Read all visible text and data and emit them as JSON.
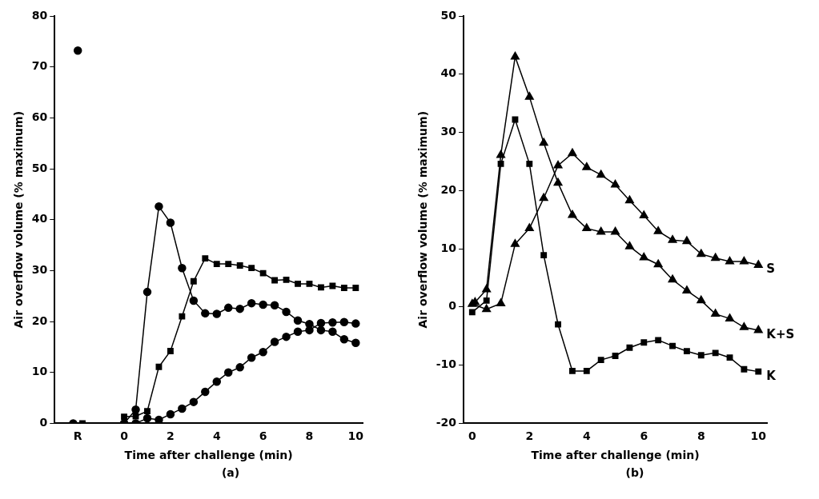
{
  "chart_data": [
    {
      "type": "line",
      "xlabel": "Time after challenge (min)",
      "ylabel": "Air overflow volume (% maximum)",
      "annotations": [
        "(a)"
      ],
      "xlim": [
        -3,
        10.3
      ],
      "xticks": [
        {
          "value": -2,
          "label": "R"
        },
        0,
        2,
        4,
        6,
        8,
        10
      ],
      "ylim": [
        0,
        80
      ],
      "yticks": [
        0,
        10,
        20,
        30,
        40,
        50,
        60,
        70,
        80
      ],
      "grid": false,
      "legend": false,
      "series": [
        {
          "color": "#000000",
          "marker": "circle",
          "x": [
            -2,
            -1,
            0,
            0.5,
            1,
            1.5,
            2,
            2.5,
            3,
            3.5,
            4,
            4.5,
            5,
            5.5,
            6,
            6.5,
            7,
            7.5,
            8,
            8.5,
            9,
            9.5,
            10
          ],
          "values": [
            73.2,
            null,
            0,
            2.7,
            25.8,
            42.6,
            39.4,
            30.5,
            24.1,
            21.6,
            21.5,
            22.7,
            22.5,
            23.6,
            23.3,
            23.2,
            21.9,
            20.2,
            19.5,
            18.3,
            18,
            16.5,
            15.8
          ]
        },
        {
          "color": "#000000",
          "marker": "square",
          "x": [
            -1.8,
            -1,
            0,
            0.5,
            1,
            1.5,
            2,
            2.5,
            3,
            3.5,
            4,
            4.5,
            5,
            5.5,
            6,
            6.5,
            7,
            7.5,
            8,
            8.5,
            9,
            9.5,
            10
          ],
          "values": [
            0,
            null,
            1.3,
            1.4,
            2.4,
            11.1,
            14.2,
            21,
            27.9,
            32.4,
            31.3,
            31.3,
            31,
            30.5,
            29.5,
            28.1,
            28.2,
            27.4,
            27.4,
            26.7,
            27,
            26.6,
            26.6
          ]
        },
        {
          "color": "#000000",
          "marker": "circle",
          "x": [
            -2.2,
            -1,
            0,
            0.5,
            1,
            1.5,
            2,
            2.5,
            3,
            3.5,
            4,
            4.5,
            5,
            5.5,
            6,
            6.5,
            7,
            7.5,
            8,
            8.5,
            9,
            9.5,
            10
          ],
          "values": [
            0,
            null,
            0,
            0,
            1,
            0.7,
            1.8,
            2.9,
            4.2,
            6.2,
            8.2,
            10,
            11,
            12.9,
            14,
            16,
            17,
            18,
            18.3,
            19.7,
            19.8,
            19.9,
            19.6
          ]
        }
      ]
    },
    {
      "type": "line",
      "xlabel": "Time after challenge (min)",
      "ylabel": "Air overflow volume (% maximum)",
      "annotations": [
        "(b)"
      ],
      "xlim": [
        -0.3,
        10.3
      ],
      "xticks": [
        0,
        2,
        4,
        6,
        8,
        10
      ],
      "ylim": [
        -20,
        50
      ],
      "yticks": [
        -20,
        -10,
        0,
        10,
        20,
        30,
        40,
        50
      ],
      "grid": false,
      "legend": false,
      "series": [
        {
          "name": "S",
          "color": "#000000",
          "marker": "triangle",
          "x": [
            0,
            0.5,
            1,
            1.5,
            2,
            2.5,
            3,
            3.5,
            4,
            4.5,
            5,
            5.5,
            6,
            6.5,
            7,
            7.5,
            8,
            8.5,
            9,
            9.5,
            10
          ],
          "values": [
            0.5,
            -0.4,
            0.6,
            10.8,
            13.5,
            18.7,
            24.3,
            26.4,
            24,
            22.7,
            21,
            18.3,
            15.7,
            13,
            11.5,
            11.3,
            9.1,
            8.4,
            7.8,
            7.8,
            7.2
          ]
        },
        {
          "name": "K+S",
          "color": "#000000",
          "marker": "triangle",
          "x": [
            0.1,
            0.5,
            1,
            1.5,
            2,
            2.5,
            3,
            3.5,
            4,
            4.5,
            5,
            5.5,
            6,
            6.5,
            7,
            7.5,
            8,
            8.5,
            9,
            9.5,
            10
          ],
          "values": [
            0.8,
            3,
            26.1,
            43,
            36.1,
            28.2,
            21.3,
            15.8,
            13.5,
            12.9,
            12.9,
            10.4,
            8.5,
            7.3,
            4.7,
            2.8,
            1.1,
            -1.2,
            -2,
            -3.5,
            -4
          ]
        },
        {
          "name": "K",
          "color": "#000000",
          "marker": "square",
          "x": [
            0,
            0.5,
            1,
            1.5,
            2,
            2.5,
            3,
            3.5,
            4,
            4.5,
            5,
            5.5,
            6,
            6.5,
            7,
            7.5,
            8,
            8.5,
            9,
            9.5,
            10
          ],
          "values": [
            -0.9,
            1.1,
            24.6,
            32.2,
            24.6,
            8.9,
            -3,
            -11,
            -11,
            -9.1,
            -8.4,
            -7,
            -6.1,
            -5.7,
            -6.7,
            -7.6,
            -8.3,
            -7.9,
            -8.7,
            -10.7,
            -11.1
          ]
        }
      ]
    }
  ]
}
